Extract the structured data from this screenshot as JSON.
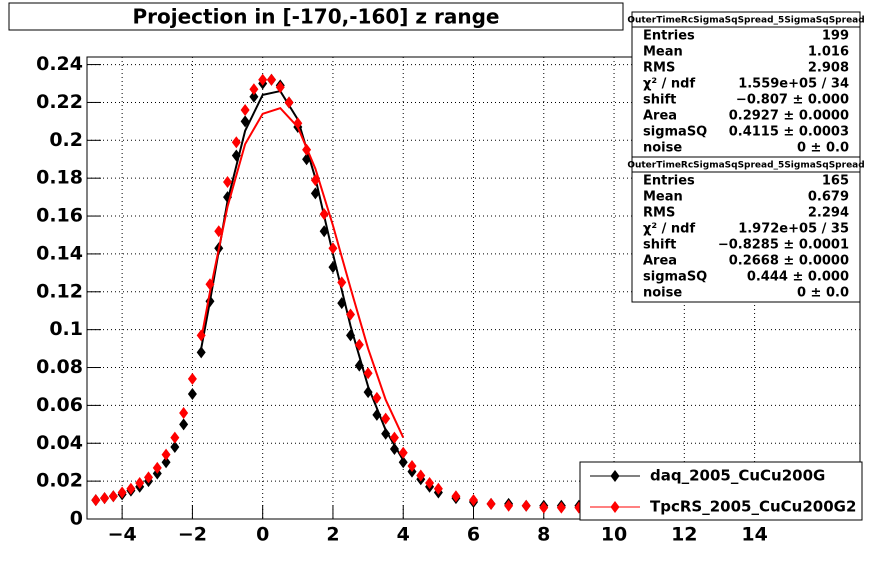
{
  "chart_data": {
    "type": "scatter",
    "title": "Projection in [-170,-160] z range",
    "xlim": [
      -5,
      17
    ],
    "ylim": [
      0,
      0.244
    ],
    "xticks": [
      {
        "value": -4,
        "label": "−4"
      },
      {
        "value": -2,
        "label": "−2"
      },
      0,
      2,
      4,
      6,
      8,
      10,
      12,
      14
    ],
    "yticks": [
      0,
      0.02,
      0.04,
      0.06,
      0.08,
      0.1,
      0.12,
      0.14,
      0.16,
      0.18,
      0.2,
      0.22,
      0.24
    ],
    "grid": true,
    "legend": "bottom-right",
    "series": [
      {
        "name": "daq_2005_CuCu200G",
        "color": "#000000",
        "x": [
          -4.75,
          -4.5,
          -4.25,
          -4,
          -3.75,
          -3.5,
          -3.25,
          -3,
          -2.75,
          -2.5,
          -2.25,
          -2,
          -1.75,
          -1.5,
          -1.25,
          -1,
          -0.75,
          -0.5,
          -0.25,
          0,
          0.25,
          0.5,
          0.75,
          1,
          1.25,
          1.5,
          1.75,
          2,
          2.25,
          2.5,
          2.75,
          3,
          3.25,
          3.5,
          3.75,
          4,
          4.25,
          4.5,
          4.75,
          5,
          5.5,
          6,
          6.5,
          7,
          7.5,
          8,
          8.5,
          9
        ],
        "values": [
          0.01,
          0.011,
          0.012,
          0.013,
          0.015,
          0.017,
          0.02,
          0.024,
          0.03,
          0.038,
          0.05,
          0.066,
          0.088,
          0.115,
          0.143,
          0.17,
          0.192,
          0.21,
          0.223,
          0.23,
          0.232,
          0.229,
          0.22,
          0.207,
          0.19,
          0.172,
          0.152,
          0.133,
          0.114,
          0.097,
          0.081,
          0.067,
          0.055,
          0.045,
          0.037,
          0.03,
          0.025,
          0.021,
          0.017,
          0.014,
          0.011,
          0.009,
          0.008,
          0.008,
          0.007,
          0.007,
          0.007,
          0.007
        ],
        "fit": {
          "x": [
            -1.75,
            -1.5,
            -1,
            -0.5,
            0,
            0.5,
            1,
            1.5,
            2,
            2.5,
            3,
            3.5,
            4
          ],
          "values": [
            0.09,
            0.115,
            0.168,
            0.205,
            0.224,
            0.226,
            0.211,
            0.18,
            0.14,
            0.102,
            0.07,
            0.047,
            0.031
          ]
        }
      },
      {
        "name": "TpcRS_2005_CuCu200G2",
        "color": "#ff0000",
        "x": [
          -4.75,
          -4.5,
          -4.25,
          -4,
          -3.75,
          -3.5,
          -3.25,
          -3,
          -2.75,
          -2.5,
          -2.25,
          -2,
          -1.75,
          -1.5,
          -1.25,
          -1,
          -0.75,
          -0.5,
          -0.25,
          0,
          0.25,
          0.5,
          0.75,
          1,
          1.25,
          1.5,
          1.75,
          2,
          2.25,
          2.5,
          2.75,
          3,
          3.25,
          3.5,
          3.75,
          4,
          4.25,
          4.5,
          4.75,
          5,
          5.5,
          6,
          6.5,
          7,
          7.5,
          8,
          8.5,
          9
        ],
        "values": [
          0.01,
          0.011,
          0.012,
          0.014,
          0.016,
          0.019,
          0.022,
          0.027,
          0.034,
          0.043,
          0.056,
          0.074,
          0.097,
          0.124,
          0.152,
          0.178,
          0.199,
          0.216,
          0.227,
          0.232,
          0.232,
          0.228,
          0.22,
          0.209,
          0.195,
          0.179,
          0.161,
          0.143,
          0.125,
          0.108,
          0.092,
          0.077,
          0.064,
          0.053,
          0.043,
          0.035,
          0.028,
          0.023,
          0.019,
          0.016,
          0.012,
          0.01,
          0.008,
          0.007,
          0.007,
          0.006,
          0.006,
          0.006
        ],
        "fit": {
          "x": [
            -1.75,
            -1.5,
            -1,
            -0.5,
            0,
            0.5,
            1,
            1.5,
            2,
            2.5,
            3,
            3.5,
            4
          ],
          "values": [
            0.095,
            0.12,
            0.165,
            0.198,
            0.214,
            0.217,
            0.207,
            0.185,
            0.155,
            0.122,
            0.09,
            0.063,
            0.043
          ]
        }
      }
    ],
    "stats_boxes": [
      {
        "title": "OuterTimeRcSigmaSqSpread_5SigmaSqSpread",
        "rows": [
          [
            "Entries",
            "199"
          ],
          [
            "Mean",
            "1.016"
          ],
          [
            "RMS",
            "2.908"
          ],
          [
            "χ² / ndf",
            "1.559e+05 / 34"
          ],
          [
            "shift",
            "−0.807 ± 0.000"
          ],
          [
            "Area",
            "0.2927 ± 0.0000"
          ],
          [
            "sigmaSQ",
            "0.4115 ± 0.0003"
          ],
          [
            "noise",
            "0 ± 0.0"
          ]
        ]
      },
      {
        "title": "OuterTimeRcSigmaSqSpread_5SigmaSqSpread",
        "rows": [
          [
            "Entries",
            "165"
          ],
          [
            "Mean",
            "0.679"
          ],
          [
            "RMS",
            "2.294"
          ],
          [
            "χ² / ndf",
            "1.972e+05 / 35"
          ],
          [
            "shift",
            "−0.8285 ± 0.0001"
          ],
          [
            "Area",
            "0.2668 ± 0.0000"
          ],
          [
            "sigmaSQ",
            "0.444 ± 0.000"
          ],
          [
            "noise",
            "0 ± 0.0"
          ]
        ]
      }
    ]
  }
}
